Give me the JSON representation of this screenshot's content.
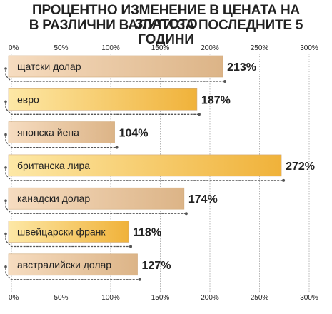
{
  "title_line1": "ПРОЦЕНТНО ИЗМЕНЕНИЕ В ЦЕНАТА НА ЗЛАТОТО",
  "title_line2": "В РАЗЛИЧНИ ВАЛУТИ ЗА ПОСЛЕДНИТЕ 5 ГОДИНИ",
  "colors": {
    "bar_tan_light": "#f6dcc0",
    "bar_tan_dark": "#dcb487",
    "bar_gold_light": "#fde8a6",
    "bar_gold_dark": "#f0b23a",
    "grid": "#b8b8b8",
    "text": "#222222"
  },
  "chart_data": {
    "type": "bar",
    "orientation": "horizontal",
    "categories": [
      "щатски долар",
      "евро",
      "японска йена",
      "британска лира",
      "канадски долар",
      "швейцарски франк",
      "австралийски долар"
    ],
    "values": [
      213,
      187,
      104,
      272,
      174,
      118,
      127
    ],
    "value_labels": [
      "213%",
      "187%",
      "104%",
      "272%",
      "174%",
      "118%",
      "127%"
    ],
    "bar_styles": [
      "tan",
      "gold",
      "tan",
      "gold",
      "tan",
      "gold",
      "tan"
    ],
    "xlim": [
      0,
      300
    ],
    "ticks": [
      0,
      50,
      100,
      150,
      200,
      250,
      300
    ],
    "tick_labels": [
      "0%",
      "50%",
      "100%",
      "150%",
      "200%",
      "250%",
      "300%"
    ],
    "grid": true
  }
}
